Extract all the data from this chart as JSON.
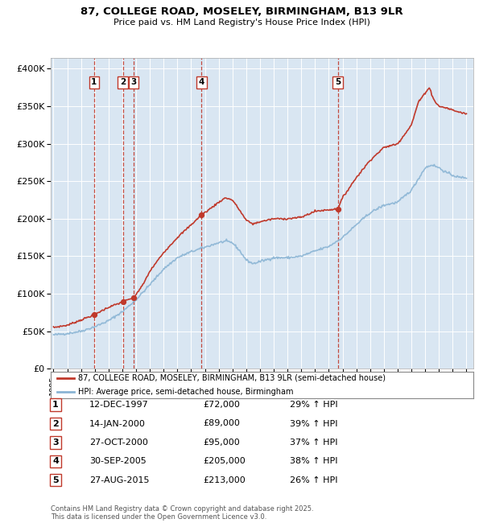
{
  "title_line1": "87, COLLEGE ROAD, MOSELEY, BIRMINGHAM, B13 9LR",
  "title_line2": "Price paid vs. HM Land Registry's House Price Index (HPI)",
  "ylabel_ticks": [
    "£0",
    "£50K",
    "£100K",
    "£150K",
    "£200K",
    "£250K",
    "£300K",
    "£350K",
    "£400K"
  ],
  "ytick_values": [
    0,
    50000,
    100000,
    150000,
    200000,
    250000,
    300000,
    350000,
    400000
  ],
  "ylim": [
    0,
    415000
  ],
  "xlim_start": 1994.8,
  "xlim_end": 2025.5,
  "bg_color": "#d9e6f2",
  "hpi_color": "#8ab4d4",
  "price_color": "#c0392b",
  "legend_label_price": "87, COLLEGE ROAD, MOSELEY, BIRMINGHAM, B13 9LR (semi-detached house)",
  "legend_label_hpi": "HPI: Average price, semi-detached house, Birmingham",
  "transactions": [
    {
      "num": 1,
      "date": "12-DEC-1997",
      "price": 72000,
      "pct": "29%",
      "year": 1997.95
    },
    {
      "num": 2,
      "date": "14-JAN-2000",
      "price": 89000,
      "pct": "39%",
      "year": 2000.04
    },
    {
      "num": 3,
      "date": "27-OCT-2000",
      "price": 95000,
      "pct": "37%",
      "year": 2000.83
    },
    {
      "num": 4,
      "date": "30-SEP-2005",
      "price": 205000,
      "pct": "38%",
      "year": 2005.75
    },
    {
      "num": 5,
      "date": "27-AUG-2015",
      "price": 213000,
      "pct": "26%",
      "year": 2015.65
    }
  ],
  "footnote": "Contains HM Land Registry data © Crown copyright and database right 2025.\nThis data is licensed under the Open Government Licence v3.0."
}
